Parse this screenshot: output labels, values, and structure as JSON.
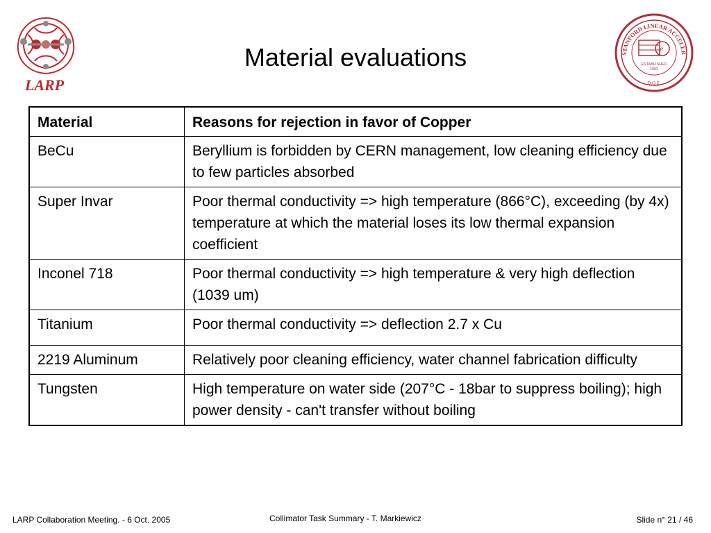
{
  "logos": {
    "larp_text": "LARP",
    "slac_seal_text_top": "STANFORD LINEAR ACCELERATOR CENTER",
    "slac_seal_established": "ESTABLISHED",
    "slac_seal_year": "1962",
    "slac_seal_bottom": "D.O.E."
  },
  "title": "Material evaluations",
  "table": {
    "headers": [
      "Material",
      "Reasons for rejection in favor of Copper"
    ],
    "rows": [
      {
        "material": "BeCu",
        "reason": "Beryllium is forbidden by CERN management, low cleaning efficiency due to few particles absorbed"
      },
      {
        "material": "Super Invar",
        "reason": "Poor thermal conductivity => high temperature (866°C), exceeding (by 4x) temperature at which the material loses its low thermal expansion coefficient"
      },
      {
        "material": "Inconel 718",
        "reason": "Poor thermal conductivity => high temperature & very high deflection (1039 um)"
      },
      {
        "material": "Titanium",
        "reason": "Poor thermal conductivity => deflection 2.7 x Cu"
      },
      {
        "material": "2219 Aluminum",
        "reason": "Relatively poor cleaning efficiency, water channel fabrication difficulty"
      },
      {
        "material": "Tungsten",
        "reason": "High temperature on water side (207°C - 18bar to suppress boiling); high power density - can't transfer without boiling"
      }
    ]
  },
  "footer": {
    "left": "LARP Collaboration Meeting.  -  6 Oct. 2005",
    "center": "Collimator Task Summary  -  T. Markiewicz",
    "right": "Slide n° 21 / 46"
  },
  "colors": {
    "larp_red": "#c0282d",
    "seal_red": "#b0303a"
  }
}
